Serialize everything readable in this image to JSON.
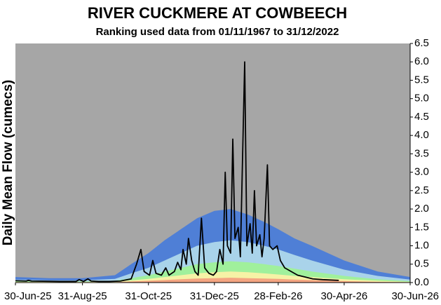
{
  "chart_data": {
    "type": "line",
    "title": "RIVER CUCKMERE AT COWBEECH",
    "subtitle": "Ranking used data from 01/11/1967 to 31/12/2022",
    "ylabel": "Daily Mean Flow (cumecs)",
    "background": "#a6a6a6",
    "xlim": [
      "2025-06-30",
      "2026-06-30"
    ],
    "xticks": [
      {
        "value": "2025-06-30",
        "label": "30-Jun-25"
      },
      {
        "value": "2025-08-31",
        "label": "31-Aug-25"
      },
      {
        "value": "2025-10-31",
        "label": "31-Oct-25"
      },
      {
        "value": "2025-12-31",
        "label": "31-Dec-25"
      },
      {
        "value": "2026-02-28",
        "label": "28-Feb-26"
      },
      {
        "value": "2026-04-30",
        "label": "30-Apr-26"
      },
      {
        "value": "2026-06-30",
        "label": "30-Jun-26"
      }
    ],
    "ylim": [
      0,
      6.5
    ],
    "yticks": [
      {
        "value": 0,
        "label": "0.0"
      },
      0.5,
      {
        "value": 1,
        "label": "1.0"
      },
      1.5,
      {
        "value": 2,
        "label": "2.0"
      },
      2.5,
      {
        "value": 3,
        "label": "3.0"
      },
      3.5,
      {
        "value": 4,
        "label": "4.0"
      },
      4.5,
      {
        "value": 5,
        "label": "5.0"
      },
      5.5,
      {
        "value": 6,
        "label": "6.0"
      },
      6.5
    ],
    "series": [
      {
        "type": "area",
        "color": "#4f7fd6",
        "x": [
          "2025-06-30",
          "2025-07-31",
          "2025-08-31",
          "2025-09-30",
          "2025-10-15",
          "2025-10-31",
          "2025-11-15",
          "2025-11-30",
          "2025-12-15",
          "2025-12-31",
          "2026-01-15",
          "2026-01-31",
          "2026-02-15",
          "2026-02-28",
          "2026-03-15",
          "2026-03-31",
          "2026-04-30",
          "2026-05-31",
          "2026-06-30"
        ],
        "values": [
          0.15,
          0.12,
          0.12,
          0.2,
          0.5,
          0.8,
          1.15,
          1.45,
          1.75,
          1.95,
          2.0,
          1.85,
          1.65,
          1.45,
          1.2,
          1.0,
          0.6,
          0.3,
          0.15
        ]
      },
      {
        "type": "area",
        "color": "#a9d3ea",
        "x": [
          "2025-06-30",
          "2025-07-31",
          "2025-08-31",
          "2025-09-30",
          "2025-10-15",
          "2025-10-31",
          "2025-11-15",
          "2025-11-30",
          "2025-12-15",
          "2025-12-31",
          "2026-01-15",
          "2026-01-31",
          "2026-02-15",
          "2026-02-28",
          "2026-03-15",
          "2026-03-31",
          "2026-04-30",
          "2026-05-31",
          "2026-06-30"
        ],
        "values": [
          0.08,
          0.06,
          0.06,
          0.1,
          0.25,
          0.4,
          0.6,
          0.8,
          1.0,
          1.1,
          1.15,
          1.1,
          1.0,
          0.9,
          0.75,
          0.6,
          0.35,
          0.18,
          0.08
        ]
      },
      {
        "type": "area",
        "color": "#a0f09c",
        "x": [
          "2025-06-30",
          "2025-07-31",
          "2025-08-31",
          "2025-09-30",
          "2025-10-15",
          "2025-10-31",
          "2025-11-15",
          "2025-11-30",
          "2025-12-15",
          "2025-12-31",
          "2026-01-15",
          "2026-01-31",
          "2026-02-15",
          "2026-02-28",
          "2026-03-15",
          "2026-03-31",
          "2026-04-30",
          "2026-05-31",
          "2026-06-30"
        ],
        "values": [
          0.04,
          0.03,
          0.03,
          0.05,
          0.12,
          0.2,
          0.3,
          0.4,
          0.5,
          0.55,
          0.58,
          0.55,
          0.5,
          0.45,
          0.38,
          0.3,
          0.18,
          0.09,
          0.04
        ]
      },
      {
        "type": "area",
        "color": "#f6f2a6",
        "x": [
          "2025-06-30",
          "2025-07-31",
          "2025-08-31",
          "2025-09-30",
          "2025-10-15",
          "2025-10-31",
          "2025-11-15",
          "2025-11-30",
          "2025-12-15",
          "2025-12-31",
          "2026-01-15",
          "2026-01-31",
          "2026-02-15",
          "2026-02-28",
          "2026-03-15",
          "2026-03-31",
          "2026-04-30",
          "2026-05-31",
          "2026-06-30"
        ],
        "values": [
          0.02,
          0.02,
          0.02,
          0.03,
          0.06,
          0.1,
          0.15,
          0.2,
          0.25,
          0.28,
          0.3,
          0.28,
          0.25,
          0.22,
          0.18,
          0.15,
          0.09,
          0.05,
          0.02
        ]
      },
      {
        "type": "area",
        "color": "#f4a582",
        "x": [
          "2025-06-30",
          "2025-07-31",
          "2025-08-31",
          "2025-09-30",
          "2025-10-15",
          "2025-10-31",
          "2025-11-15",
          "2025-11-30",
          "2025-12-15",
          "2025-12-31",
          "2026-01-15",
          "2026-01-31",
          "2026-02-15",
          "2026-02-28",
          "2026-03-15",
          "2026-03-31",
          "2026-04-30",
          "2026-05-31",
          "2026-06-30"
        ],
        "values": [
          0.01,
          0.01,
          0.01,
          0.01,
          0.03,
          0.05,
          0.07,
          0.09,
          0.11,
          0.12,
          0.13,
          0.12,
          0.11,
          0.1,
          0.08,
          0.07,
          0.04,
          0.02,
          0.01
        ]
      },
      {
        "type": "line",
        "color": "#000000",
        "x": [
          "2025-06-30",
          "2025-07-10",
          "2025-07-12",
          "2025-07-15",
          "2025-08-10",
          "2025-08-25",
          "2025-08-28",
          "2025-09-01",
          "2025-09-05",
          "2025-09-08",
          "2025-09-15",
          "2025-09-25",
          "2025-10-05",
          "2025-10-15",
          "2025-10-20",
          "2025-10-24",
          "2025-10-27",
          "2025-11-01",
          "2025-11-04",
          "2025-11-07",
          "2025-11-12",
          "2025-11-16",
          "2025-11-19",
          "2025-11-24",
          "2025-11-27",
          "2025-11-30",
          "2025-12-02",
          "2025-12-05",
          "2025-12-07",
          "2025-12-10",
          "2025-12-13",
          "2025-12-16",
          "2025-12-19",
          "2025-12-22",
          "2025-12-26",
          "2025-12-30",
          "2026-01-02",
          "2026-01-05",
          "2026-01-08",
          "2026-01-10",
          "2026-01-12",
          "2026-01-15",
          "2026-01-17",
          "2026-01-19",
          "2026-01-22",
          "2026-01-24",
          "2026-01-28",
          "2026-01-30",
          "2026-02-02",
          "2026-02-04",
          "2026-02-06",
          "2026-02-08",
          "2026-02-11",
          "2026-02-13",
          "2026-02-15",
          "2026-02-18",
          "2026-02-20",
          "2026-02-23",
          "2026-02-27",
          "2026-03-02",
          "2026-03-06",
          "2026-03-12",
          "2026-03-18",
          "2026-03-25",
          "2026-04-01",
          "2026-04-10",
          "2026-04-25"
        ],
        "values": [
          0.05,
          0.04,
          0.06,
          0.04,
          0.03,
          0.03,
          0.08,
          0.03,
          0.1,
          0.04,
          0.03,
          0.03,
          0.04,
          0.1,
          0.5,
          0.9,
          0.3,
          0.2,
          0.6,
          0.25,
          0.2,
          0.4,
          0.2,
          0.3,
          0.55,
          0.35,
          0.9,
          0.5,
          1.2,
          0.6,
          0.3,
          0.2,
          1.75,
          0.4,
          0.25,
          0.2,
          0.3,
          0.9,
          0.5,
          3.0,
          1.0,
          0.8,
          3.9,
          1.2,
          1.5,
          0.7,
          6.0,
          1.0,
          1.6,
          0.8,
          2.5,
          1.0,
          1.3,
          0.7,
          1.2,
          3.2,
          1.0,
          0.9,
          1.0,
          0.6,
          0.4,
          0.3,
          0.2,
          0.15,
          0.1,
          0.08,
          0.06
        ]
      }
    ]
  }
}
